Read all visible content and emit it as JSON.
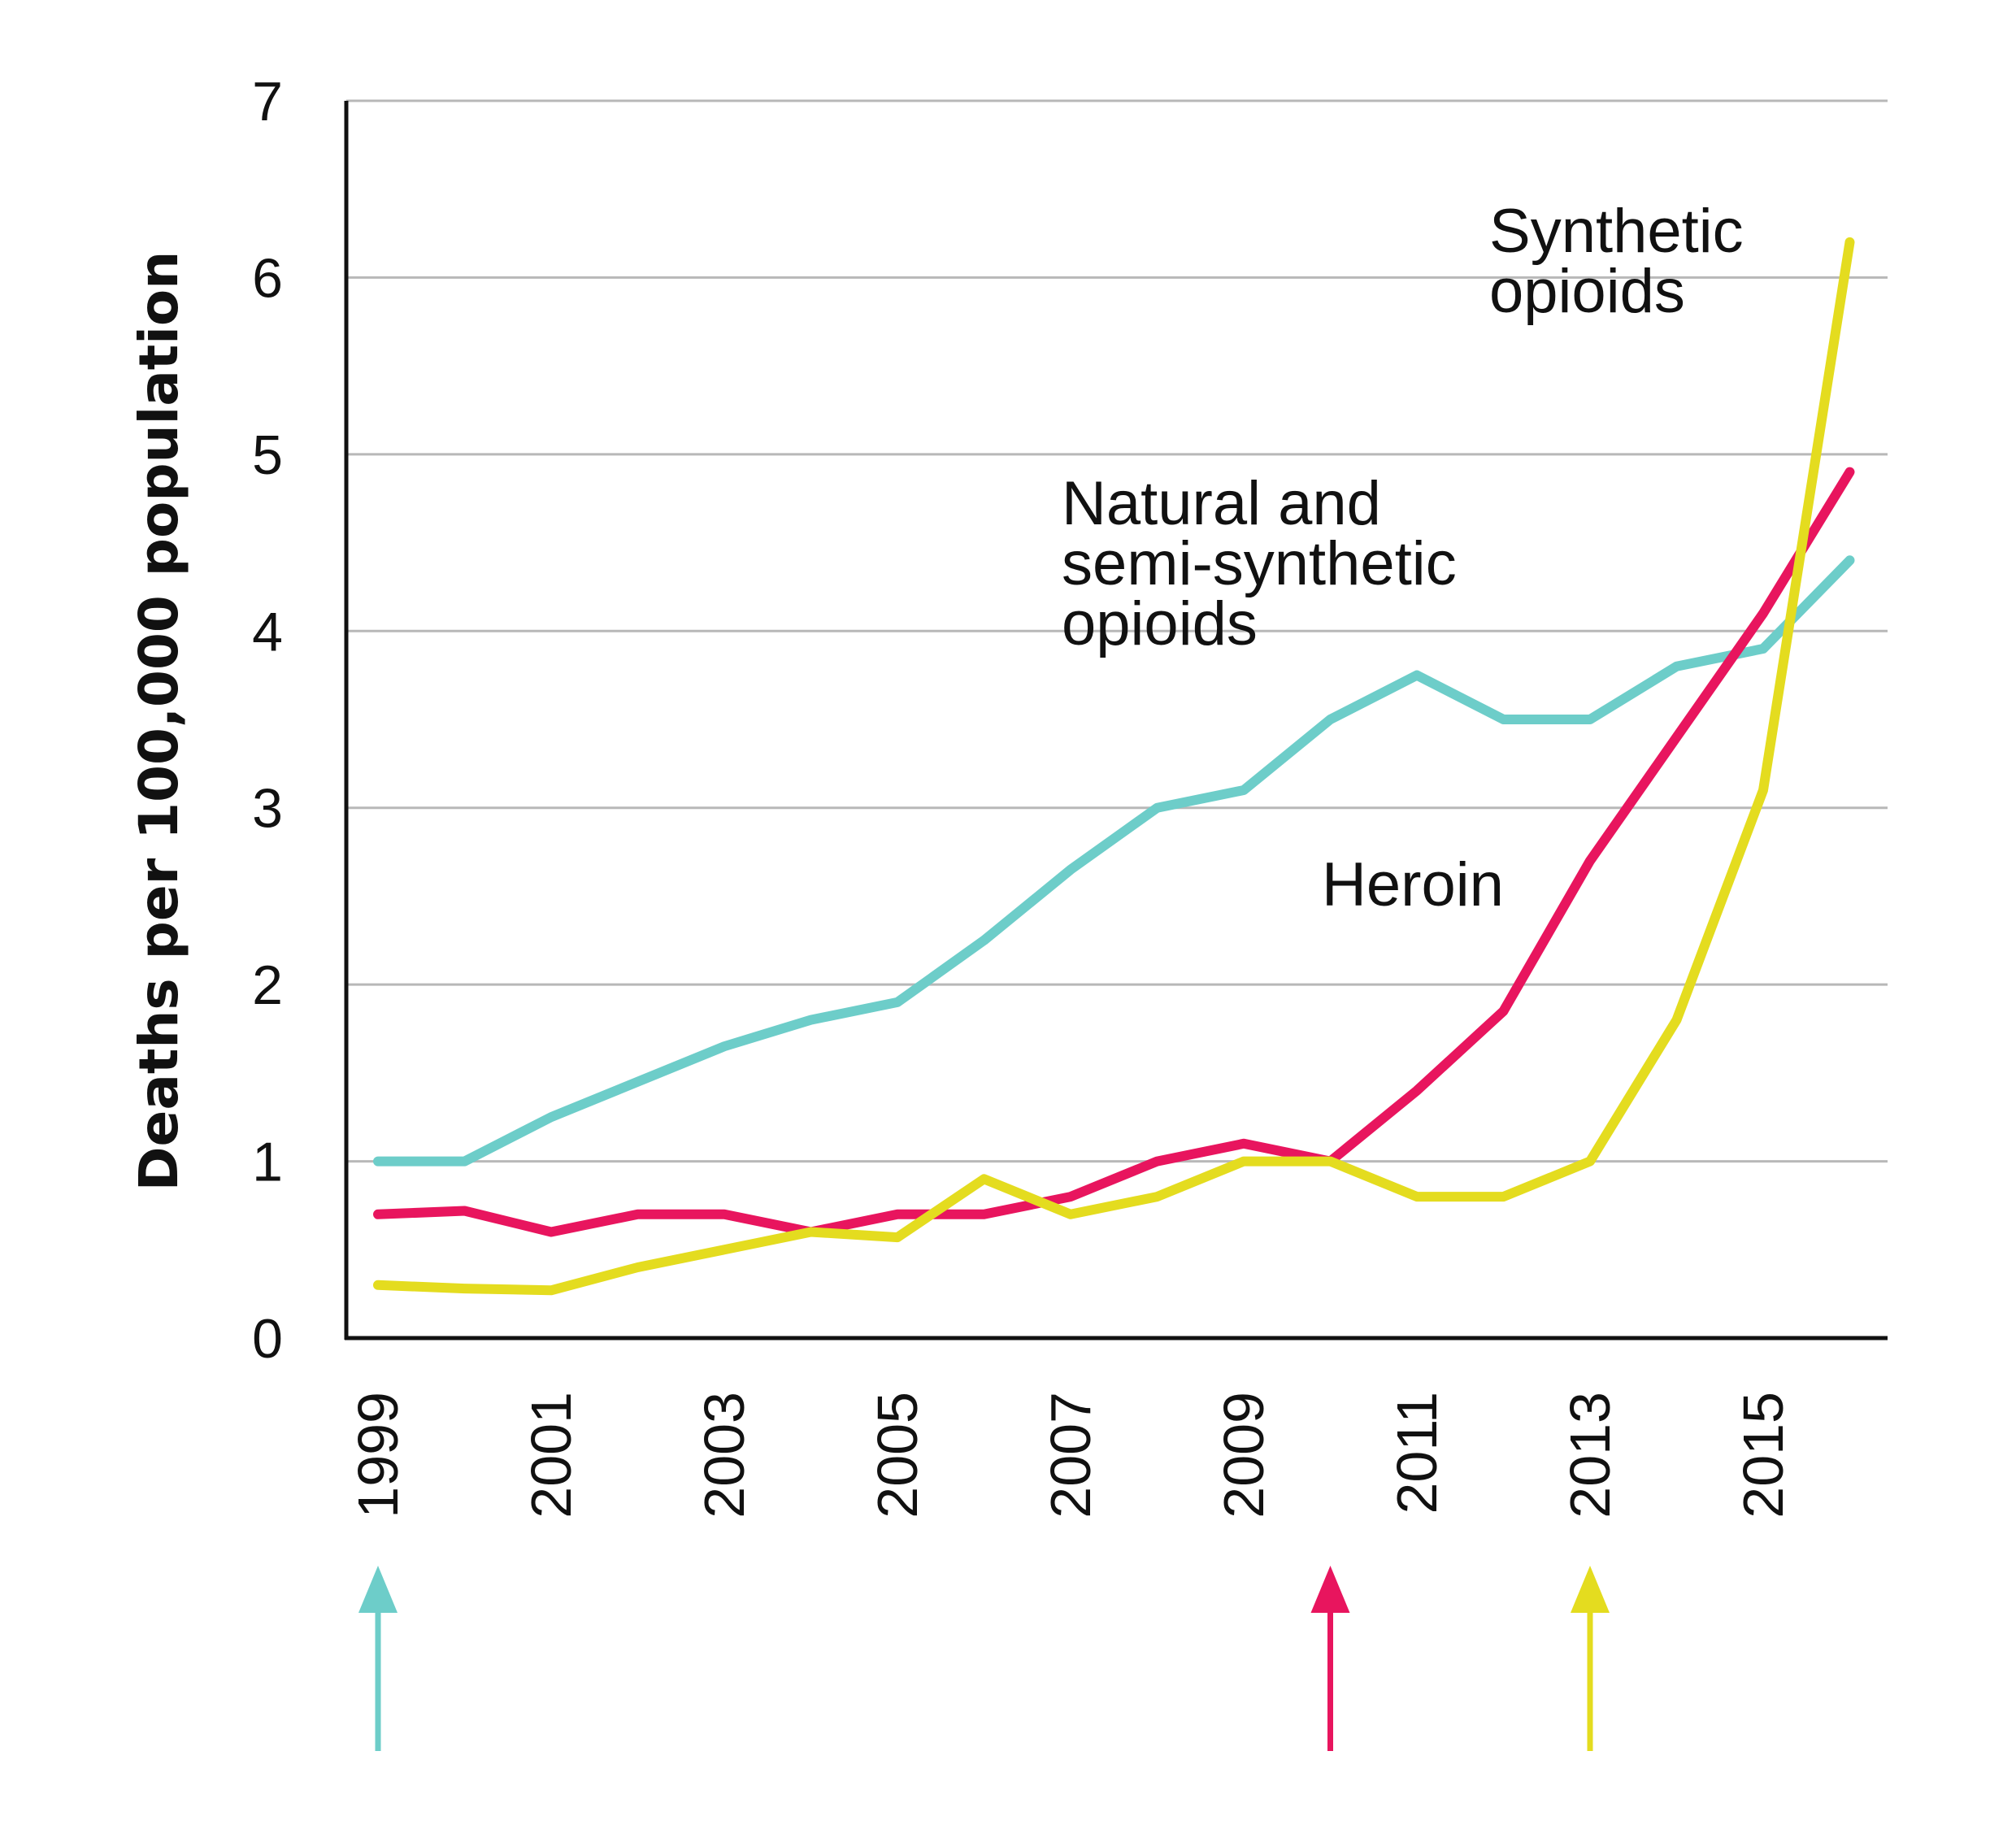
{
  "chart_data": {
    "type": "line",
    "title": "",
    "xlabel": "",
    "ylabel": "Deaths per 100,000 population",
    "ylim": [
      0,
      7
    ],
    "xlim": [
      1999,
      2016
    ],
    "yticks": [
      "0",
      "1",
      "2",
      "3",
      "4",
      "5",
      "6",
      "7"
    ],
    "xticks": [
      "1999",
      "2001",
      "2003",
      "2005",
      "2007",
      "2009",
      "2011",
      "2013",
      "2015"
    ],
    "grid": true,
    "x": [
      1999,
      2000,
      2001,
      2002,
      2003,
      2004,
      2005,
      2006,
      2007,
      2008,
      2009,
      2010,
      2011,
      2012,
      2013,
      2014,
      2015,
      2016
    ],
    "series": [
      {
        "name": "Natural and semi-synthetic opioids",
        "label_lines": [
          "Natural and",
          "semi-synthetic",
          "opioids"
        ],
        "color": "#6dcdc9",
        "values": [
          1.0,
          1.0,
          1.25,
          1.45,
          1.65,
          1.8,
          1.9,
          2.25,
          2.65,
          3.0,
          3.1,
          3.5,
          3.75,
          3.5,
          3.5,
          3.8,
          3.9,
          4.4
        ]
      },
      {
        "name": "Heroin",
        "label_lines": [
          "Heroin"
        ],
        "color": "#e8155e",
        "values": [
          0.7,
          0.72,
          0.6,
          0.7,
          0.7,
          0.6,
          0.7,
          0.7,
          0.8,
          1.0,
          1.1,
          1.0,
          1.4,
          1.85,
          2.7,
          3.4,
          4.1,
          4.9
        ]
      },
      {
        "name": "Synthetic opioids",
        "label_lines": [
          "Synthetic",
          "opioids"
        ],
        "color": "#e4dc1f",
        "values": [
          0.3,
          0.28,
          0.27,
          0.4,
          0.5,
          0.6,
          0.57,
          0.9,
          0.7,
          0.8,
          1.0,
          1.0,
          0.8,
          0.8,
          1.0,
          1.8,
          3.1,
          6.2
        ]
      }
    ],
    "markers": [
      {
        "series": "Natural and semi-synthetic opioids",
        "x": 1999,
        "color": "#6dcdc9"
      },
      {
        "series": "Heroin",
        "x": 2010,
        "color": "#e8155e"
      },
      {
        "series": "Synthetic opioids",
        "x": 2013,
        "color": "#e4dc1f"
      }
    ]
  }
}
